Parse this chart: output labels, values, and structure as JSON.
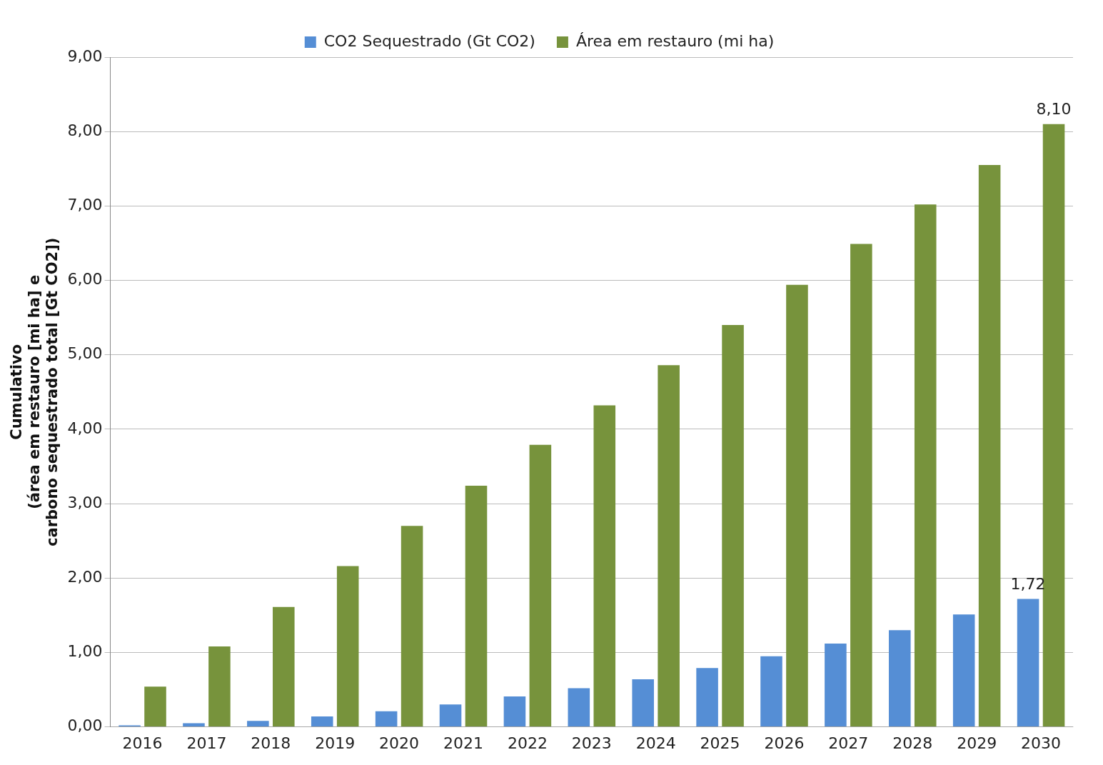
{
  "chart_data": {
    "type": "bar",
    "ylabel": "Cumulativo\n(área em restauro [mi ha] e\ncarbono sequestrado total [Gt CO2])",
    "categories": [
      "2016",
      "2017",
      "2018",
      "2019",
      "2020",
      "2021",
      "2022",
      "2023",
      "2024",
      "2025",
      "2026",
      "2027",
      "2028",
      "2029",
      "2030"
    ],
    "series": [
      {
        "name": "CO2 Sequestrado (Gt CO2)",
        "color": "#558ed5",
        "values": [
          0.02,
          0.05,
          0.08,
          0.14,
          0.21,
          0.3,
          0.41,
          0.52,
          0.64,
          0.79,
          0.95,
          1.12,
          1.3,
          1.51,
          1.72
        ],
        "value_labels": [
          null,
          null,
          null,
          null,
          null,
          null,
          null,
          null,
          null,
          null,
          null,
          null,
          null,
          null,
          "1,72"
        ]
      },
      {
        "name": "Área em restauro (mi ha)",
        "color": "#77933c",
        "values": [
          0.54,
          1.08,
          1.61,
          2.16,
          2.7,
          3.24,
          3.79,
          4.32,
          4.86,
          5.4,
          5.94,
          6.49,
          7.02,
          7.55,
          8.1
        ],
        "value_labels": [
          null,
          null,
          null,
          null,
          null,
          null,
          null,
          null,
          null,
          null,
          null,
          null,
          null,
          null,
          "8,10"
        ]
      }
    ],
    "ylim": [
      0,
      9
    ],
    "yticks": [
      {
        "value": 0,
        "label": "0,00"
      },
      {
        "value": 1,
        "label": "1,00"
      },
      {
        "value": 2,
        "label": "2,00"
      },
      {
        "value": 3,
        "label": "3,00"
      },
      {
        "value": 4,
        "label": "4,00"
      },
      {
        "value": 5,
        "label": "5,00"
      },
      {
        "value": 6,
        "label": "6,00"
      },
      {
        "value": 7,
        "label": "7,00"
      },
      {
        "value": 8,
        "label": "8,00"
      },
      {
        "value": 9,
        "label": "9,00"
      }
    ],
    "grid": "y",
    "legend": "top"
  }
}
